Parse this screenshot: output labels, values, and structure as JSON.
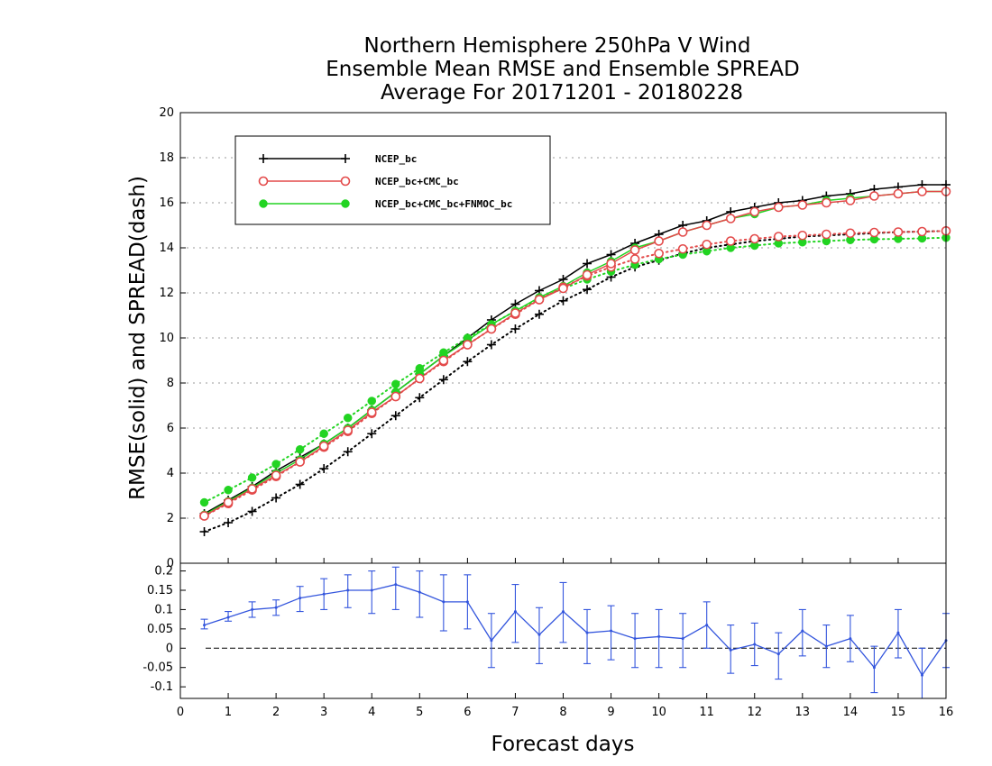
{
  "chart_data": [
    {
      "type": "line",
      "title_lines": [
        "Northern Hemisphere 250hPa V Wind",
        "Ensemble Mean RMSE and Ensemble SPREAD",
        "Average For 20171201 - 20180228"
      ],
      "ylabel": "RMSE(solid) and SPREAD(dash)",
      "xlim": [
        0,
        16
      ],
      "ylim": [
        0,
        20
      ],
      "yticks": [
        "0",
        "2",
        "4",
        "6",
        "8",
        "10",
        "12",
        "14",
        "16",
        "18",
        "20"
      ],
      "grid": "horizontal dotted",
      "legend_position": "top-left",
      "x": [
        0.5,
        1,
        1.5,
        2,
        2.5,
        3,
        3.5,
        4,
        4.5,
        5,
        5.5,
        6,
        6.5,
        7,
        7.5,
        8,
        8.5,
        9,
        9.5,
        10,
        10.5,
        11,
        11.5,
        12,
        12.5,
        13,
        13.5,
        14,
        14.5,
        15,
        15.5,
        16
      ],
      "series": [
        {
          "name": "NCEP_bc",
          "color": "#000000",
          "marker": "plus",
          "rmse": [
            2.2,
            2.8,
            3.4,
            4.1,
            4.7,
            5.3,
            6.0,
            6.8,
            7.6,
            8.4,
            9.2,
            10.0,
            10.8,
            11.5,
            12.1,
            12.6,
            13.3,
            13.7,
            14.2,
            14.6,
            15.0,
            15.2,
            15.6,
            15.8,
            16.0,
            16.1,
            16.3,
            16.4,
            16.6,
            16.7,
            16.8,
            16.8
          ],
          "spread": [
            1.4,
            1.8,
            2.3,
            2.9,
            3.5,
            4.2,
            4.95,
            5.75,
            6.55,
            7.35,
            8.15,
            8.95,
            9.7,
            10.4,
            11.05,
            11.65,
            12.15,
            12.7,
            13.15,
            13.45,
            13.75,
            14.0,
            14.15,
            14.3,
            14.4,
            14.5,
            14.55,
            14.6,
            14.65,
            14.7,
            14.72,
            14.75
          ]
        },
        {
          "name": "NCEP_bc+CMC_bc",
          "color": "#e34a4a",
          "marker": "open-circle",
          "rmse": [
            2.1,
            2.7,
            3.3,
            3.9,
            4.5,
            5.2,
            5.9,
            6.7,
            7.4,
            8.2,
            9.0,
            9.7,
            10.4,
            11.1,
            11.7,
            12.2,
            12.8,
            13.3,
            13.9,
            14.3,
            14.7,
            15.0,
            15.3,
            15.6,
            15.8,
            15.9,
            16.0,
            16.1,
            16.3,
            16.4,
            16.5,
            16.5
          ],
          "spread": [
            2.1,
            2.65,
            3.25,
            3.85,
            4.5,
            5.15,
            5.85,
            6.65,
            7.4,
            8.2,
            8.95,
            9.7,
            10.4,
            11.05,
            11.7,
            12.25,
            12.75,
            13.15,
            13.5,
            13.75,
            13.95,
            14.15,
            14.3,
            14.4,
            14.5,
            14.55,
            14.6,
            14.65,
            14.68,
            14.7,
            14.72,
            14.75
          ]
        },
        {
          "name": "NCEP_bc+CMC_bc+FNMOC_bc",
          "color": "#22d422",
          "marker": "filled-circle",
          "rmse": [
            2.15,
            2.75,
            3.35,
            4.0,
            4.6,
            5.3,
            6.0,
            6.8,
            7.6,
            8.4,
            9.2,
            9.9,
            10.6,
            11.2,
            11.8,
            12.3,
            12.9,
            13.4,
            14.0,
            14.3,
            14.7,
            15.0,
            15.3,
            15.5,
            15.8,
            15.9,
            16.1,
            16.2,
            16.3,
            16.4,
            16.5,
            16.5
          ],
          "spread": [
            2.7,
            3.25,
            3.8,
            4.4,
            5.05,
            5.75,
            6.45,
            7.2,
            7.95,
            8.65,
            9.35,
            10.0,
            10.6,
            11.2,
            11.75,
            12.2,
            12.6,
            12.95,
            13.25,
            13.5,
            13.7,
            13.85,
            14.0,
            14.1,
            14.2,
            14.25,
            14.3,
            14.35,
            14.38,
            14.4,
            14.42,
            14.45
          ]
        }
      ]
    },
    {
      "type": "line",
      "xlabel": "Forecast days",
      "xlim": [
        0,
        16
      ],
      "ylim": [
        -0.13,
        0.22
      ],
      "xticks": [
        "0",
        "1",
        "2",
        "3",
        "4",
        "5",
        "6",
        "7",
        "8",
        "9",
        "10",
        "11",
        "12",
        "13",
        "14",
        "15",
        "16"
      ],
      "yticks": [
        "-0.1",
        "-0.05",
        "0",
        "0.05",
        "0.1",
        "0.15",
        "0.2"
      ],
      "zero_line": "dashed",
      "series": [
        {
          "color": "#3355dd",
          "marker": "error-bar",
          "x": [
            0.5,
            1,
            1.5,
            2,
            2.5,
            3,
            3.5,
            4,
            4.5,
            5,
            5.5,
            6,
            6.5,
            7,
            7.5,
            8,
            8.5,
            9,
            9.5,
            10,
            10.5,
            11,
            11.5,
            12,
            12.5,
            13,
            13.5,
            14,
            14.5,
            15,
            15.5,
            16
          ],
          "values": [
            0.06,
            0.08,
            0.1,
            0.105,
            0.13,
            0.14,
            0.15,
            0.15,
            0.165,
            0.145,
            0.12,
            0.12,
            0.02,
            0.095,
            0.035,
            0.095,
            0.04,
            0.045,
            0.025,
            0.03,
            0.025,
            0.06,
            -0.005,
            0.01,
            -0.015,
            0.045,
            0.005,
            0.025,
            -0.05,
            0.04,
            -0.07,
            0.02
          ],
          "lower": [
            0.05,
            0.07,
            0.08,
            0.085,
            0.095,
            0.1,
            0.105,
            0.09,
            0.1,
            0.08,
            0.045,
            0.05,
            -0.05,
            0.015,
            -0.04,
            0.015,
            -0.04,
            -0.03,
            -0.05,
            -0.05,
            -0.05,
            0.0,
            -0.065,
            -0.045,
            -0.08,
            -0.02,
            -0.05,
            -0.035,
            -0.115,
            -0.025,
            -0.14,
            -0.05
          ],
          "upper": [
            0.075,
            0.095,
            0.12,
            0.125,
            0.16,
            0.18,
            0.19,
            0.2,
            0.21,
            0.2,
            0.19,
            0.19,
            0.09,
            0.165,
            0.105,
            0.17,
            0.1,
            0.11,
            0.09,
            0.1,
            0.09,
            0.12,
            0.06,
            0.065,
            0.04,
            0.1,
            0.06,
            0.085,
            0.005,
            0.1,
            0.0,
            0.09
          ]
        }
      ]
    }
  ]
}
